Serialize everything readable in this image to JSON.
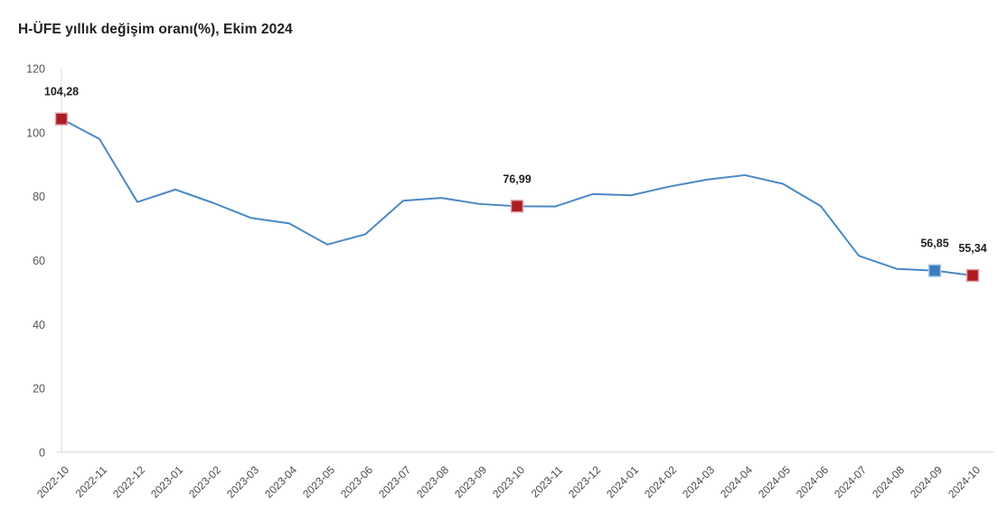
{
  "title": "H-ÜFE yıllık değişim oranı(%), Ekim 2024",
  "chart_data": {
    "type": "line",
    "title": "H-ÜFE yıllık değişim oranı(%), Ekim 2024",
    "xlabel": "",
    "ylabel": "",
    "ylim": [
      0,
      120
    ],
    "yticks": [
      0,
      20,
      40,
      60,
      80,
      100,
      120
    ],
    "grid": false,
    "legend_position": "none",
    "x": [
      "2022-10",
      "2022-11",
      "2022-12",
      "2023-01",
      "2023-02",
      "2023-03",
      "2023-04",
      "2023-05",
      "2023-06",
      "2023-07",
      "2023-08",
      "2023-09",
      "2023-10",
      "2023-11",
      "2023-12",
      "2024-01",
      "2024-02",
      "2024-03",
      "2024-04",
      "2024-05",
      "2024-06",
      "2024-07",
      "2024-08",
      "2024-09",
      "2024-10"
    ],
    "series": [
      {
        "name": "H-ÜFE yıllık değişim oranı (%)",
        "values": [
          104.28,
          98.0,
          78.3,
          82.2,
          78.0,
          73.3,
          71.6,
          65.0,
          68.2,
          78.7,
          79.6,
          77.7,
          76.99,
          76.9,
          80.8,
          80.4,
          83.1,
          85.3,
          86.7,
          84.0,
          77.0,
          61.5,
          57.4,
          56.85,
          55.34
        ]
      }
    ],
    "markers": [
      {
        "x": "2022-10",
        "color": "red",
        "label": "104,28"
      },
      {
        "x": "2023-10",
        "color": "red",
        "label": "76,99"
      },
      {
        "x": "2024-09",
        "color": "blue",
        "label": "56,85"
      },
      {
        "x": "2024-10",
        "color": "red",
        "label": "55,34"
      }
    ],
    "colors": {
      "line": "#4a89c6",
      "marker_red": "#ae1c23",
      "marker_red_border": "#e2a6a9",
      "marker_blue": "#3b7cbf",
      "marker_blue_border": "#a9c9e7",
      "axis": "#d9d9d9",
      "tick_text": "#555555",
      "data_label": "#1f1f1f"
    }
  }
}
